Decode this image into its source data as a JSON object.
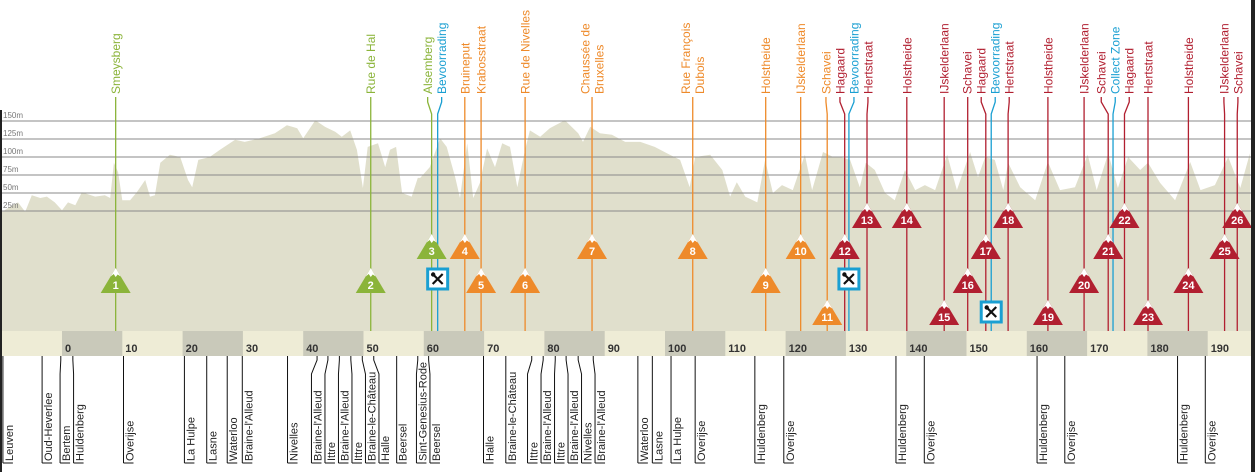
{
  "colors": {
    "green": "#8bb43a",
    "orange": "#ee8a2a",
    "red": "#b11f30",
    "blue": "#1a9fd2",
    "profile_fill": "#e0dfcc",
    "bar_light": "#eeecd6",
    "bar_dark": "#c9c9ba",
    "grid": "#8a8a8a"
  },
  "elevation_axis": {
    "unit": "m",
    "ticks": [
      {
        "value": 150,
        "label": "150m"
      },
      {
        "value": 125,
        "label": "125m"
      },
      {
        "value": 100,
        "label": "100m"
      },
      {
        "value": 75,
        "label": "75m"
      },
      {
        "value": 50,
        "label": "50m"
      },
      {
        "value": 25,
        "label": "25m"
      }
    ]
  },
  "distance_axis": {
    "unit": "km",
    "ticks": [
      "0",
      "10",
      "20",
      "30",
      "40",
      "50",
      "60",
      "70",
      "80",
      "90",
      "100",
      "110",
      "120",
      "130",
      "140",
      "150",
      "160",
      "170",
      "180",
      "190"
    ]
  },
  "climbs": [
    {
      "number": "1",
      "name": [
        "Smeysberg"
      ],
      "km": 8.9,
      "color": "green"
    },
    {
      "number": "2",
      "name": [
        "Rue de Hal"
      ],
      "km": 51.2,
      "color": "green"
    },
    {
      "number": "3",
      "name": [
        "Alsemberg"
      ],
      "km": 61.3,
      "color": "green"
    },
    {
      "number": "4",
      "name": [
        "Bruineput"
      ],
      "km": 66.8,
      "color": "orange"
    },
    {
      "number": "5",
      "name": [
        "Krabosstraat"
      ],
      "km": 69.5,
      "color": "orange"
    },
    {
      "number": "6",
      "name": [
        "Rue de Nivelles"
      ],
      "km": 76.8,
      "color": "orange"
    },
    {
      "number": "7",
      "name": [
        "Chaussée de",
        "Bruxelles"
      ],
      "km": 87.9,
      "color": "orange"
    },
    {
      "number": "8",
      "name": [
        "Rue François",
        "Dubois"
      ],
      "km": 104.6,
      "color": "orange"
    },
    {
      "number": "9",
      "name": [
        "Holstheide"
      ],
      "km": 116.7,
      "color": "orange"
    },
    {
      "number": "10",
      "name": [
        "IJskelderlaan"
      ],
      "km": 122.5,
      "color": "orange"
    },
    {
      "number": "11",
      "name": [
        "Schavei"
      ],
      "km": 126.9,
      "color": "orange"
    },
    {
      "number": "12",
      "name": [
        "Hagaard"
      ],
      "km": 129.8,
      "color": "red"
    },
    {
      "number": "13",
      "name": [
        "Hertstraat"
      ],
      "km": 133.5,
      "color": "red"
    },
    {
      "number": "14",
      "name": [
        "Holstheide"
      ],
      "km": 140.1,
      "color": "red"
    },
    {
      "number": "15",
      "name": [
        "IJskelderlaan"
      ],
      "km": 146.3,
      "color": "red"
    },
    {
      "number": "16",
      "name": [
        "Schavei"
      ],
      "km": 150.2,
      "color": "red"
    },
    {
      "number": "17",
      "name": [
        "Hagaard"
      ],
      "km": 153.2,
      "color": "red"
    },
    {
      "number": "18",
      "name": [
        "Hertstraat"
      ],
      "km": 156.9,
      "color": "red"
    },
    {
      "number": "19",
      "name": [
        "Holstheide"
      ],
      "km": 163.5,
      "color": "red"
    },
    {
      "number": "20",
      "name": [
        "IJskelderlaan"
      ],
      "km": 169.5,
      "color": "red"
    },
    {
      "number": "21",
      "name": [
        "Schavei"
      ],
      "km": 173.5,
      "color": "red"
    },
    {
      "number": "22",
      "name": [
        "Hagaard"
      ],
      "km": 176.2,
      "color": "red"
    },
    {
      "number": "23",
      "name": [
        "Hertstraat"
      ],
      "km": 180.1,
      "color": "red"
    },
    {
      "number": "24",
      "name": [
        "Holstheide"
      ],
      "km": 186.8,
      "color": "red"
    },
    {
      "number": "25",
      "name": [
        "IJskelderlaan"
      ],
      "km": 192.8,
      "color": "red"
    },
    {
      "number": "26",
      "name": [
        "Schavei"
      ],
      "km": 194.9,
      "color": "red"
    }
  ],
  "service_points": [
    {
      "name": "Bevoorrading",
      "km": 62.3,
      "icon": "fork-knife-icon"
    },
    {
      "name": "Bevoorrading",
      "km": 130.5,
      "icon": "fork-knife-icon"
    },
    {
      "name": "Bevoorrading",
      "km": 154.1,
      "icon": "fork-knife-icon"
    },
    {
      "name": "Collect Zone",
      "km": 174.3,
      "icon": ""
    }
  ],
  "towns": [
    {
      "name": "Leuven",
      "km": -9.8
    },
    {
      "name": "Oud-Heverlee",
      "km": -3.3
    },
    {
      "name": "Bertem",
      "km": -0.2
    },
    {
      "name": "Huldenberg",
      "km": 1.8
    },
    {
      "name": "Overijse",
      "km": 10.2
    },
    {
      "name": "La Hulpe",
      "km": 20.3
    },
    {
      "name": "Lasne",
      "km": 24.0
    },
    {
      "name": "Waterloo",
      "km": 27.4
    },
    {
      "name": "Braine-l'Alleud",
      "km": 29.9
    },
    {
      "name": "Nivelles",
      "km": 37.4
    },
    {
      "name": "Braine-l'Alleud",
      "km": 42.3
    },
    {
      "name": "Ittre",
      "km": 44.1
    },
    {
      "name": "Braine-l'Alleud",
      "km": 46.0
    },
    {
      "name": "Ittre",
      "km": 47.9
    },
    {
      "name": "Braine-le-Château",
      "km": 49.8
    },
    {
      "name": "Halle",
      "km": 51.7
    },
    {
      "name": "Beersel",
      "km": 55.5
    },
    {
      "name": "Sint-Genesius-Rode",
      "km": 59.0
    },
    {
      "name": "Beersel",
      "km": 60.8
    },
    {
      "name": "Halle",
      "km": 69.9
    },
    {
      "name": "Braine-le-Château",
      "km": 73.6
    },
    {
      "name": "Ittre",
      "km": 77.9
    },
    {
      "name": "Braine-l'Alleud",
      "km": 79.8
    },
    {
      "name": "Ittre",
      "km": 81.8
    },
    {
      "name": "Braine-l'Alleud",
      "km": 83.6
    },
    {
      "name": "Nivelles",
      "km": 85.6
    },
    {
      "name": "Braine-l'Alleud",
      "km": 88.1
    },
    {
      "name": "Waterloo",
      "km": 95.5
    },
    {
      "name": "Lasne",
      "km": 97.9
    },
    {
      "name": "La Hulpe",
      "km": 101.0
    },
    {
      "name": "Overijse",
      "km": 105.0
    },
    {
      "name": "Huldenberg",
      "km": 114.9
    },
    {
      "name": "Overijse",
      "km": 119.7
    },
    {
      "name": "Huldenberg",
      "km": 138.3
    },
    {
      "name": "Overijse",
      "km": 143.0
    },
    {
      "name": "Huldenberg",
      "km": 161.7
    },
    {
      "name": "Overijse",
      "km": 166.3
    },
    {
      "name": "Huldenberg",
      "km": 185.0
    },
    {
      "name": "Overijse",
      "km": 189.6
    }
  ],
  "profile": [
    [
      -10.3,
      22
    ],
    [
      -8.6,
      31
    ],
    [
      -7.3,
      37
    ],
    [
      -6.1,
      24
    ],
    [
      -5,
      47
    ],
    [
      -3.6,
      43
    ],
    [
      -2.5,
      45
    ],
    [
      -1.2,
      37
    ],
    [
      0,
      26
    ],
    [
      1,
      37
    ],
    [
      2.2,
      33
    ],
    [
      3.3,
      51
    ],
    [
      5.5,
      45
    ],
    [
      7.1,
      47
    ],
    [
      8,
      43
    ],
    [
      8.6,
      92
    ],
    [
      9.3,
      79
    ],
    [
      10,
      40
    ],
    [
      11.3,
      40
    ],
    [
      12.4,
      51
    ],
    [
      13.8,
      68
    ],
    [
      14.6,
      45
    ],
    [
      15.4,
      47
    ],
    [
      16.3,
      92
    ],
    [
      17.9,
      103
    ],
    [
      19.6,
      100
    ],
    [
      20.9,
      68
    ],
    [
      21.6,
      58
    ],
    [
      22.6,
      96
    ],
    [
      24.5,
      100
    ],
    [
      26.2,
      110
    ],
    [
      28.7,
      124
    ],
    [
      30.3,
      121
    ],
    [
      32.8,
      126
    ],
    [
      35.3,
      133
    ],
    [
      37.3,
      144
    ],
    [
      39,
      140
    ],
    [
      40,
      126
    ],
    [
      42,
      151
    ],
    [
      43.6,
      142
    ],
    [
      45.3,
      135
    ],
    [
      46.4,
      128
    ],
    [
      47.8,
      137
    ],
    [
      48.9,
      110
    ],
    [
      49.9,
      57
    ],
    [
      50.7,
      114
    ],
    [
      52.4,
      119
    ],
    [
      53.6,
      86
    ],
    [
      54.4,
      110
    ],
    [
      55.4,
      114
    ],
    [
      56.4,
      50
    ],
    [
      58,
      45
    ],
    [
      59,
      71
    ],
    [
      59.4,
      71
    ],
    [
      61,
      86
    ],
    [
      62.7,
      126
    ],
    [
      63.8,
      114
    ],
    [
      65.2,
      72
    ],
    [
      66,
      43
    ],
    [
      67.2,
      119
    ],
    [
      68.2,
      43
    ],
    [
      69.3,
      64
    ],
    [
      70.5,
      112
    ],
    [
      71.8,
      86
    ],
    [
      73,
      119
    ],
    [
      74.3,
      114
    ],
    [
      75.5,
      58
    ],
    [
      76.8,
      110
    ],
    [
      77.6,
      137
    ],
    [
      79.3,
      128
    ],
    [
      80.9,
      140
    ],
    [
      83.4,
      151
    ],
    [
      85.6,
      133
    ],
    [
      86.4,
      121
    ],
    [
      87.6,
      142
    ],
    [
      89.2,
      133
    ],
    [
      91.2,
      131
    ],
    [
      93.4,
      121
    ],
    [
      95.9,
      121
    ],
    [
      98.3,
      114
    ],
    [
      100.8,
      103
    ],
    [
      102.5,
      96
    ],
    [
      104.1,
      58
    ],
    [
      105,
      100
    ],
    [
      107.5,
      103
    ],
    [
      109.5,
      82
    ],
    [
      110.8,
      45
    ],
    [
      111.9,
      65
    ],
    [
      113.3,
      45
    ],
    [
      115.3,
      37
    ],
    [
      116.6,
      96
    ],
    [
      117.9,
      50
    ],
    [
      119.4,
      61
    ],
    [
      121.2,
      54
    ],
    [
      123.2,
      103
    ],
    [
      124.4,
      54
    ],
    [
      126.2,
      107
    ],
    [
      127.9,
      100
    ],
    [
      129,
      100
    ],
    [
      130.7,
      96
    ],
    [
      132.3,
      58
    ],
    [
      133.3,
      92
    ],
    [
      134.8,
      82
    ],
    [
      136.5,
      50
    ],
    [
      138.1,
      40
    ],
    [
      139.8,
      82
    ],
    [
      141.5,
      54
    ],
    [
      143.1,
      61
    ],
    [
      144.8,
      54
    ],
    [
      146.8,
      103
    ],
    [
      148.4,
      54
    ],
    [
      150.6,
      107
    ],
    [
      151.9,
      72
    ],
    [
      153.1,
      100
    ],
    [
      154.7,
      96
    ],
    [
      156.1,
      54
    ],
    [
      156.9,
      92
    ],
    [
      158.9,
      58
    ],
    [
      161.4,
      40
    ],
    [
      163.5,
      93
    ],
    [
      165.5,
      54
    ],
    [
      168,
      58
    ],
    [
      170.1,
      103
    ],
    [
      171.6,
      54
    ],
    [
      173.5,
      105
    ],
    [
      175.1,
      57
    ],
    [
      176.8,
      100
    ],
    [
      178.8,
      82
    ],
    [
      180.1,
      92
    ],
    [
      182.1,
      64
    ],
    [
      184.6,
      40
    ],
    [
      187.1,
      93
    ],
    [
      188.8,
      54
    ],
    [
      191.2,
      61
    ],
    [
      193.4,
      100
    ],
    [
      195.4,
      57
    ],
    [
      197,
      105
    ]
  ]
}
